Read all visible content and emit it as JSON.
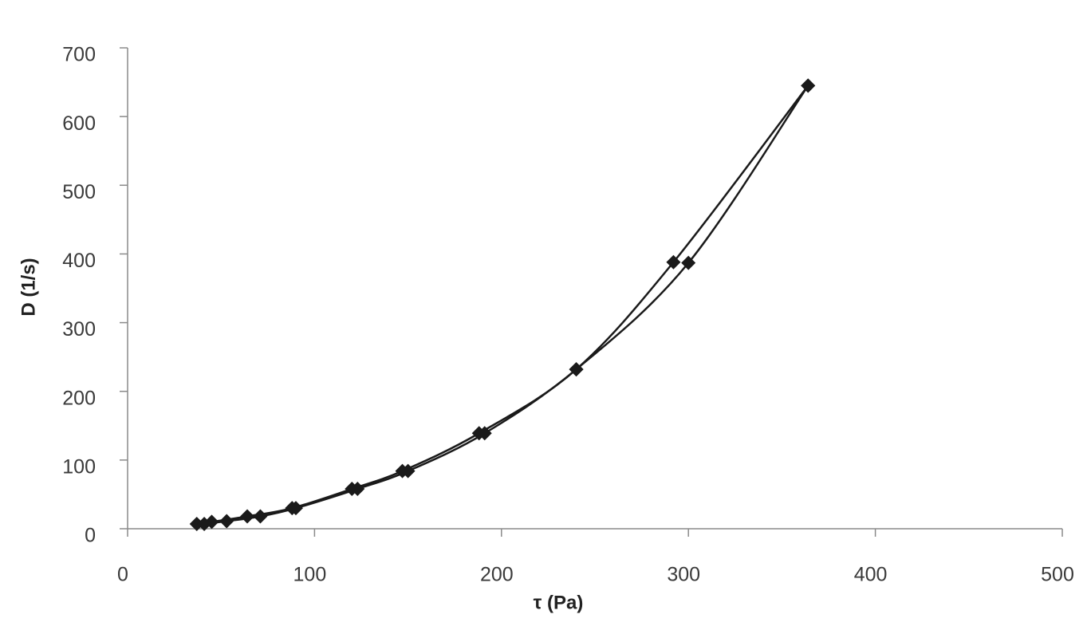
{
  "chart_data": {
    "type": "scatter-line",
    "x_label": "τ (Pa)",
    "y_label": "D (1/s)",
    "xlim": [
      0,
      500
    ],
    "xticks": [
      0,
      100,
      200,
      300,
      400,
      500
    ],
    "ylim": [
      0,
      700
    ],
    "yticks": [
      0,
      100,
      200,
      300,
      400,
      500,
      600,
      700
    ],
    "grid": false,
    "series": [
      {
        "color": "#1a1a1a",
        "x": [
          37,
          45,
          64,
          88,
          120,
          147,
          188,
          240,
          292,
          364
        ],
        "values": [
          7,
          10,
          18,
          30,
          58,
          84,
          139,
          232,
          388,
          645
        ]
      },
      {
        "color": "#1a1a1a",
        "x": [
          41,
          53,
          71,
          90,
          123,
          150,
          191,
          240,
          300,
          364
        ],
        "values": [
          7,
          11,
          18,
          30,
          58,
          84,
          139,
          232,
          387,
          645
        ]
      }
    ]
  }
}
